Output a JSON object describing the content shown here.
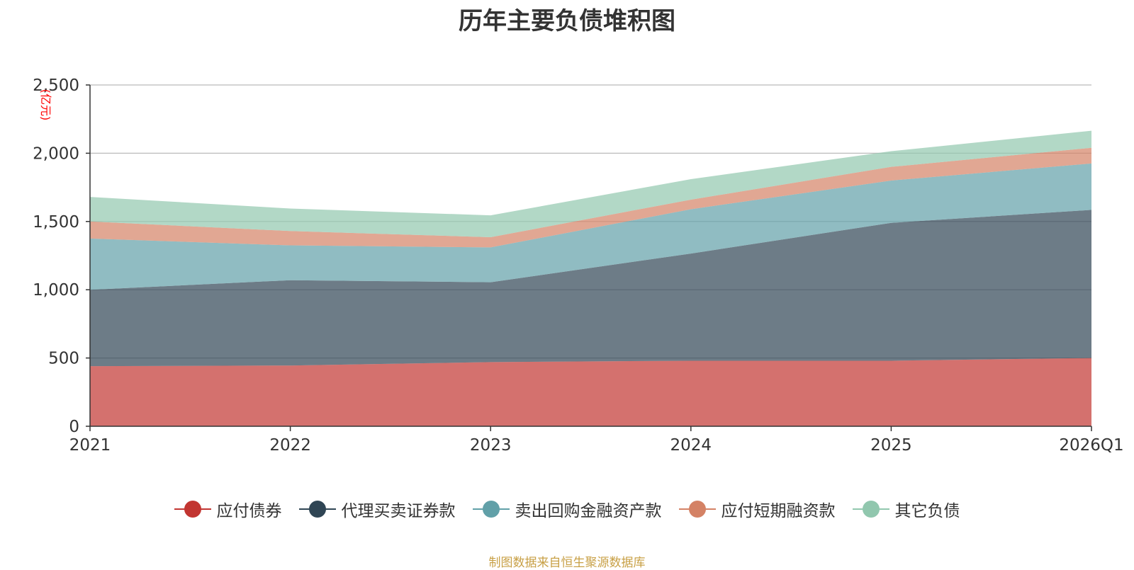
{
  "chart_data": {
    "type": "area",
    "stacked": true,
    "title": "历年主要负债堆积图",
    "ylabel": "亿元",
    "xlabel": "",
    "categories": [
      "2021",
      "2022",
      "2023",
      "2024",
      "2025",
      "2026Q1"
    ],
    "ylim": [
      0,
      2500
    ],
    "yticks": [
      "0",
      "500",
      "1,000",
      "1,500",
      "2,000",
      "2,500"
    ],
    "grid": true,
    "legend_position": "bottom",
    "series": [
      {
        "name": "应付债券",
        "color": "#c23531",
        "values": [
          440,
          445,
          470,
          480,
          480,
          500
        ]
      },
      {
        "name": "代理买卖证券款",
        "color": "#2f4554",
        "values": [
          560,
          625,
          585,
          785,
          1010,
          1085
        ]
      },
      {
        "name": "卖出回购金融资产款",
        "color": "#61a0a8",
        "values": [
          375,
          255,
          255,
          325,
          310,
          340
        ]
      },
      {
        "name": "应付短期融资款",
        "color": "#d48265",
        "values": [
          125,
          105,
          75,
          70,
          100,
          115
        ]
      },
      {
        "name": "其它负债",
        "color": "#91c7ae",
        "values": [
          180,
          165,
          160,
          150,
          115,
          125
        ]
      }
    ]
  },
  "footer": {
    "source": "制图数据来自恒生聚源数据库"
  }
}
